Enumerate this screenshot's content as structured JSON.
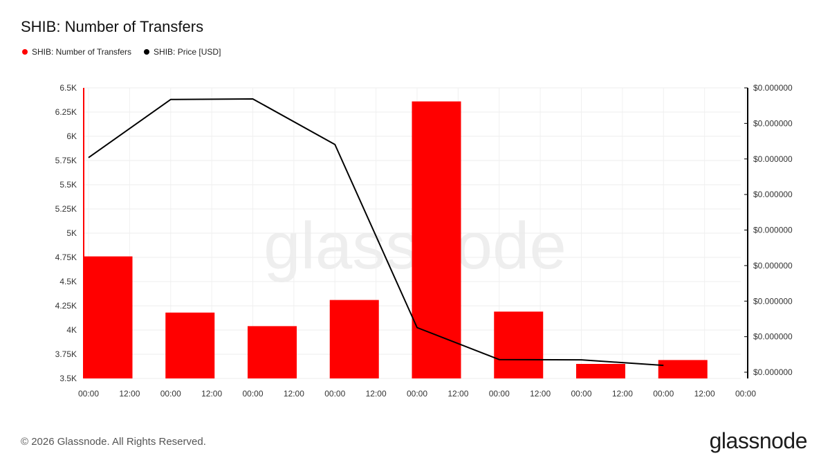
{
  "header": {
    "title": "SHIB: Number of Transfers"
  },
  "legend": [
    {
      "label": "SHIB: Number of Transfers",
      "color": "#ff0000"
    },
    {
      "label": "SHIB: Price [USD]",
      "color": "#000000"
    }
  ],
  "watermark": "glassnode",
  "footer": {
    "copyright": "© 2026 Glassnode. All Rights Reserved.",
    "logo": "glassnode"
  },
  "chart_data": {
    "type": "bar",
    "x_tick_labels": [
      "00:00",
      "12:00",
      "00:00",
      "12:00",
      "00:00",
      "12:00",
      "00:00",
      "12:00",
      "00:00",
      "12:00",
      "00:00",
      "12:00",
      "00:00",
      "12:00",
      "00:00",
      "12:00",
      "00:00"
    ],
    "y_left": {
      "ylim": [
        3500,
        6500
      ],
      "tick_labels": [
        "3.5K",
        "3.75K",
        "4K",
        "4.25K",
        "4.5K",
        "4.75K",
        "5K",
        "5.25K",
        "5.5K",
        "5.75K",
        "6K",
        "6.25K",
        "6.5K"
      ],
      "color": "#ff0000"
    },
    "y_right": {
      "tick_labels": [
        "$0.000000",
        "$0.000000",
        "$0.000000",
        "$0.000000",
        "$0.000000",
        "$0.000000",
        "$0.000000",
        "$0.000000",
        "$0.000000"
      ],
      "color": "#000000"
    },
    "series": [
      {
        "name": "SHIB: Number of Transfers",
        "type": "bar",
        "color": "#ff0000",
        "values": [
          4760,
          4180,
          4040,
          4310,
          6360,
          4190,
          3650,
          3690
        ]
      },
      {
        "name": "SHIB: Price [USD]",
        "type": "line",
        "color": "#000000",
        "values_relative": [
          0.76,
          0.96,
          0.962,
          0.805,
          0.175,
          0.065,
          0.064,
          0.045
        ]
      }
    ],
    "grid": true,
    "legend_position": "top-left"
  }
}
